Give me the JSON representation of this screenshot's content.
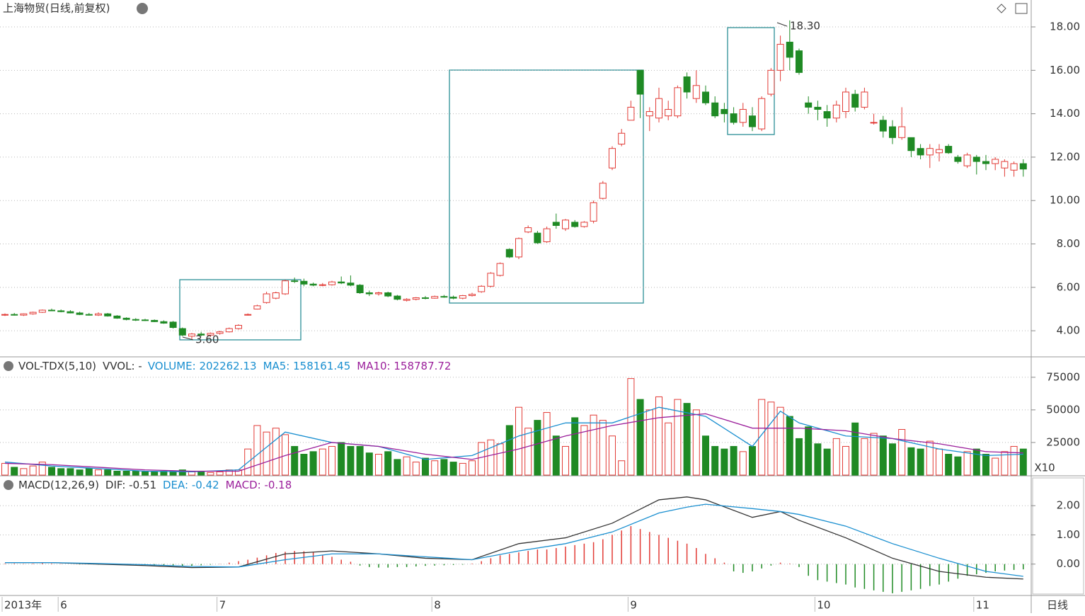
{
  "chart_data": {
    "type": "candlestick",
    "title": "上海物贸(日线,前复权)",
    "ylim": [
      2.83,
      19.24
    ],
    "yticks": [
      {
        "value": 4,
        "label": "4.00"
      },
      {
        "value": 6,
        "label": "6.00"
      },
      {
        "value": 8,
        "label": "8.00"
      },
      {
        "value": 10,
        "label": "10.00"
      },
      {
        "value": 12,
        "label": "12.00"
      },
      {
        "value": 14,
        "label": "14.00"
      },
      {
        "value": 16,
        "label": "16.00"
      },
      {
        "value": 18,
        "label": "18.00"
      }
    ],
    "xticks": [
      {
        "value": 0,
        "label": "2013年"
      },
      {
        "value": 6,
        "label": "6"
      },
      {
        "value": 23,
        "label": "7"
      },
      {
        "value": 46,
        "label": "8"
      },
      {
        "value": 67,
        "label": "9"
      },
      {
        "value": 87,
        "label": "10"
      },
      {
        "value": 104,
        "label": "11"
      }
    ],
    "period_label": "日线",
    "up_color": "#e23b36",
    "down_color": "#1f8a24",
    "annotations": [
      "18.30",
      "3.60"
    ],
    "candles": [
      [
        4.72,
        4.8,
        4.68,
        4.75
      ],
      [
        4.75,
        4.82,
        4.7,
        4.72
      ],
      [
        4.72,
        4.8,
        4.68,
        4.78
      ],
      [
        4.78,
        4.88,
        4.74,
        4.85
      ],
      [
        4.85,
        4.98,
        4.82,
        4.95
      ],
      [
        4.95,
        5.02,
        4.9,
        4.92
      ],
      [
        4.92,
        4.98,
        4.85,
        4.88
      ],
      [
        4.88,
        4.95,
        4.8,
        4.82
      ],
      [
        4.82,
        4.88,
        4.72,
        4.75
      ],
      [
        4.75,
        4.82,
        4.7,
        4.72
      ],
      [
        4.72,
        4.85,
        4.68,
        4.78
      ],
      [
        4.78,
        4.82,
        4.65,
        4.68
      ],
      [
        4.68,
        4.72,
        4.55,
        4.58
      ],
      [
        4.58,
        4.62,
        4.48,
        4.52
      ],
      [
        4.52,
        4.58,
        4.45,
        4.5
      ],
      [
        4.5,
        4.55,
        4.45,
        4.48
      ],
      [
        4.48,
        4.52,
        4.4,
        4.42
      ],
      [
        4.42,
        4.48,
        4.32,
        4.35
      ],
      [
        4.4,
        4.45,
        4.1,
        4.15
      ],
      [
        4.1,
        4.15,
        3.75,
        3.8
      ],
      [
        3.75,
        3.9,
        3.6,
        3.85
      ],
      [
        3.85,
        3.95,
        3.75,
        3.8
      ],
      [
        3.8,
        3.92,
        3.72,
        3.88
      ],
      [
        3.88,
        4.0,
        3.82,
        3.95
      ],
      [
        3.95,
        4.15,
        3.92,
        4.1
      ],
      [
        4.1,
        4.3,
        4.05,
        4.25
      ],
      [
        4.75,
        4.8,
        4.7,
        4.75
      ],
      [
        5.0,
        5.2,
        4.98,
        5.15
      ],
      [
        5.3,
        5.8,
        5.25,
        5.7
      ],
      [
        5.5,
        5.8,
        5.45,
        5.75
      ],
      [
        5.7,
        6.35,
        5.65,
        6.3
      ],
      [
        6.3,
        6.45,
        6.2,
        6.28
      ],
      [
        6.28,
        6.4,
        6.05,
        6.15
      ],
      [
        6.15,
        6.22,
        6.05,
        6.1
      ],
      [
        6.1,
        6.2,
        6.05,
        6.12
      ],
      [
        6.12,
        6.3,
        6.08,
        6.25
      ],
      [
        6.25,
        6.5,
        6.15,
        6.2
      ],
      [
        6.2,
        6.55,
        6.05,
        6.1
      ],
      [
        6.1,
        6.15,
        5.7,
        5.75
      ],
      [
        5.75,
        5.85,
        5.6,
        5.7
      ],
      [
        5.7,
        5.8,
        5.62,
        5.75
      ],
      [
        5.75,
        5.8,
        5.55,
        5.6
      ],
      [
        5.6,
        5.65,
        5.4,
        5.45
      ],
      [
        5.4,
        5.5,
        5.35,
        5.45
      ],
      [
        5.45,
        5.55,
        5.4,
        5.52
      ],
      [
        5.52,
        5.6,
        5.45,
        5.5
      ],
      [
        5.5,
        5.62,
        5.48,
        5.58
      ],
      [
        5.58,
        5.65,
        5.52,
        5.55
      ],
      [
        5.55,
        5.62,
        5.45,
        5.5
      ],
      [
        5.5,
        5.65,
        5.45,
        5.62
      ],
      [
        5.62,
        5.75,
        5.58,
        5.68
      ],
      [
        5.8,
        6.1,
        5.75,
        6.05
      ],
      [
        6.05,
        6.7,
        6.0,
        6.65
      ],
      [
        6.55,
        7.15,
        6.5,
        7.1
      ],
      [
        7.75,
        7.8,
        7.35,
        7.4
      ],
      [
        7.4,
        8.3,
        7.3,
        8.25
      ],
      [
        8.55,
        8.85,
        8.5,
        8.75
      ],
      [
        8.5,
        8.6,
        8.0,
        8.05
      ],
      [
        8.1,
        8.8,
        8.05,
        8.7
      ],
      [
        9.0,
        9.4,
        8.7,
        8.85
      ],
      [
        8.7,
        9.15,
        8.6,
        9.1
      ],
      [
        9.0,
        9.1,
        8.75,
        8.8
      ],
      [
        8.8,
        9.05,
        8.75,
        9.0
      ],
      [
        9.05,
        10.0,
        8.95,
        9.9
      ],
      [
        10.1,
        10.9,
        10.05,
        10.8
      ],
      [
        11.5,
        12.5,
        11.4,
        12.4
      ],
      [
        12.6,
        13.3,
        12.5,
        13.1
      ],
      [
        13.7,
        14.6,
        13.7,
        14.3
      ],
      [
        16.0,
        16.0,
        13.8,
        14.9
      ],
      [
        13.9,
        14.3,
        13.2,
        14.1
      ],
      [
        13.8,
        15.2,
        13.6,
        14.7
      ],
      [
        13.9,
        14.6,
        13.7,
        14.2
      ],
      [
        13.9,
        15.3,
        13.8,
        15.2
      ],
      [
        15.7,
        15.9,
        14.7,
        15.0
      ],
      [
        14.7,
        16.0,
        14.5,
        15.3
      ],
      [
        15.0,
        15.3,
        14.4,
        14.5
      ],
      [
        14.5,
        14.8,
        13.8,
        13.9
      ],
      [
        14.2,
        14.5,
        13.6,
        14.0
      ],
      [
        14.0,
        14.3,
        13.5,
        13.6
      ],
      [
        13.6,
        14.5,
        13.4,
        14.2
      ],
      [
        13.9,
        14.3,
        13.2,
        13.4
      ],
      [
        13.3,
        14.8,
        13.2,
        14.7
      ],
      [
        14.9,
        16.1,
        14.8,
        16.0
      ],
      [
        16.0,
        17.6,
        15.5,
        17.2
      ],
      [
        17.3,
        18.3,
        16.0,
        16.6
      ],
      [
        16.9,
        17.0,
        15.8,
        15.9
      ],
      [
        14.5,
        14.8,
        14.0,
        14.3
      ],
      [
        14.3,
        14.6,
        13.7,
        14.2
      ],
      [
        14.1,
        14.4,
        13.4,
        13.8
      ],
      [
        13.8,
        14.6,
        13.6,
        14.4
      ],
      [
        14.1,
        15.2,
        13.8,
        15.0
      ],
      [
        14.9,
        15.1,
        14.1,
        14.3
      ],
      [
        14.3,
        15.2,
        14.2,
        15.0
      ],
      [
        13.6,
        14.0,
        13.5,
        13.6
      ],
      [
        13.7,
        13.9,
        12.9,
        13.2
      ],
      [
        13.4,
        13.7,
        12.6,
        12.9
      ],
      [
        12.9,
        14.3,
        12.8,
        13.4
      ],
      [
        12.9,
        12.9,
        12.0,
        12.3
      ],
      [
        12.4,
        12.6,
        11.9,
        12.1
      ],
      [
        12.1,
        12.6,
        11.5,
        12.4
      ],
      [
        12.2,
        12.6,
        11.8,
        12.35
      ],
      [
        12.5,
        12.6,
        12.15,
        12.2
      ],
      [
        12.0,
        12.1,
        11.7,
        11.8
      ],
      [
        11.6,
        12.2,
        11.5,
        12.1
      ],
      [
        12.0,
        12.1,
        11.2,
        11.8
      ],
      [
        11.8,
        12.1,
        11.4,
        11.7
      ],
      [
        11.7,
        12.0,
        11.4,
        11.9
      ],
      [
        11.5,
        11.9,
        11.1,
        11.8
      ],
      [
        11.4,
        11.8,
        11.1,
        11.7
      ],
      [
        11.7,
        11.9,
        11.1,
        11.45
      ]
    ],
    "volume": {
      "indicator": "VOL-TDX(5,10)",
      "vvol": "VVOL: -",
      "readouts": [
        {
          "text": "VOLUME: 202262.13",
          "color": "#1a8fd0"
        },
        {
          "text": "MA5: 158161.45",
          "color": "#1a8fd0"
        },
        {
          "text": "MA10: 158787.72",
          "color": "#9b1f9b"
        }
      ],
      "unit_label": "X10",
      "ylim": [
        0,
        89000
      ],
      "yticks": [
        25000,
        50000,
        75000
      ],
      "values": [
        9000,
        6000,
        5000,
        7000,
        10000,
        6000,
        5000,
        5000,
        4000,
        5000,
        4000,
        4000,
        3000,
        3000,
        3000,
        2500,
        2500,
        3000,
        3000,
        4000,
        2500,
        2500,
        2000,
        2500,
        4000,
        4000,
        20000,
        38000,
        33000,
        36000,
        31000,
        22000,
        16000,
        18000,
        20000,
        22000,
        25000,
        22000,
        22000,
        17000,
        16000,
        18000,
        12000,
        14000,
        10000,
        13000,
        11000,
        12000,
        10000,
        9000,
        11000,
        25000,
        27000,
        24000,
        38000,
        52000,
        36000,
        42000,
        48000,
        30000,
        22000,
        44000,
        38000,
        46000,
        42000,
        30000,
        11000,
        74000,
        58000,
        50000,
        60000,
        40000,
        58000,
        55000,
        50000,
        30000,
        22000,
        20000,
        22000,
        18000,
        22000,
        58000,
        56000,
        52000,
        45000,
        28000,
        37000,
        24000,
        20000,
        28000,
        22000,
        40000,
        28000,
        32000,
        30000,
        24000,
        35000,
        21000,
        20000,
        26000,
        20000,
        16000,
        14000,
        18000,
        20000,
        16000,
        13000,
        18000,
        22000,
        20000
      ],
      "lines": [
        {
          "name": "MA5",
          "color": "#1a8fd0",
          "x": [
            0,
            5,
            10,
            15,
            20,
            25,
            30,
            35,
            40,
            45,
            50,
            55,
            60,
            65,
            70,
            75,
            80,
            83,
            85,
            90,
            95,
            100,
            105,
            109
          ],
          "values": [
            10000,
            7000,
            5000,
            3000,
            2500,
            4000,
            33000,
            25000,
            22000,
            12000,
            15000,
            30000,
            40000,
            40000,
            52000,
            45000,
            22000,
            49000,
            40000,
            30000,
            28000,
            20000,
            15000,
            16000
          ]
        },
        {
          "name": "MA10",
          "color": "#9b1f9b",
          "x": [
            0,
            5,
            10,
            15,
            20,
            25,
            30,
            35,
            40,
            45,
            50,
            55,
            60,
            65,
            70,
            75,
            80,
            83,
            85,
            90,
            95,
            100,
            105,
            109
          ],
          "values": [
            9000,
            8000,
            6000,
            4000,
            3000,
            3000,
            15000,
            25000,
            22000,
            16000,
            12000,
            20000,
            30000,
            38000,
            44000,
            47000,
            36000,
            36000,
            36000,
            34000,
            28000,
            24000,
            18000,
            17000
          ]
        }
      ]
    },
    "macd": {
      "indicator": "MACD(12,26,9)",
      "readouts": [
        {
          "text": "DIF: -0.51",
          "color": "#333333"
        },
        {
          "text": "DEA: -0.42",
          "color": "#1a8fd0"
        },
        {
          "text": "MACD: -0.18",
          "color": "#9b1f9b"
        }
      ],
      "ylim": [
        -1.05,
        2.95
      ],
      "yticks": [
        {
          "value": 0,
          "label": "0.00"
        },
        {
          "value": 1,
          "label": "1.00"
        },
        {
          "value": 2,
          "label": "2.00"
        }
      ],
      "values": [
        0.02,
        0.02,
        0.01,
        0.02,
        0.03,
        0.02,
        0.01,
        0,
        -0.01,
        -0.01,
        -0.02,
        -0.02,
        -0.03,
        -0.03,
        -0.04,
        -0.04,
        -0.05,
        -0.05,
        -0.06,
        -0.08,
        -0.06,
        -0.04,
        -0.02,
        0.01,
        0.05,
        0.1,
        0.15,
        0.22,
        0.3,
        0.38,
        0.42,
        0.45,
        0.44,
        0.4,
        0.32,
        0.25,
        0.15,
        0.08,
        -0.05,
        -0.1,
        -0.12,
        -0.12,
        -0.1,
        -0.1,
        -0.08,
        -0.06,
        -0.05,
        -0.04,
        -0.03,
        -0.02,
        0.02,
        0.1,
        0.2,
        0.3,
        0.35,
        0.4,
        0.45,
        0.5,
        0.5,
        0.55,
        0.6,
        0.65,
        0.7,
        0.75,
        0.85,
        1.0,
        1.15,
        1.3,
        1.2,
        1.1,
        1.0,
        0.9,
        0.8,
        0.7,
        0.55,
        0.35,
        0.2,
        0.05,
        -0.25,
        -0.3,
        -0.25,
        -0.15,
        -0.05,
        0.05,
        0.02,
        -0.1,
        -0.4,
        -0.55,
        -0.6,
        -0.65,
        -0.7,
        -0.8,
        -0.85,
        -0.9,
        -0.95,
        -1.0,
        -0.95,
        -0.9,
        -0.85,
        -0.75,
        -0.7,
        -0.6,
        -0.5,
        -0.4,
        -0.35,
        -0.3,
        -0.25,
        -0.22,
        -0.2,
        -0.18
      ],
      "lines": [
        {
          "name": "DIF",
          "color": "#333333",
          "x": [
            0,
            5,
            10,
            15,
            20,
            25,
            30,
            35,
            40,
            45,
            50,
            55,
            60,
            65,
            70,
            73,
            75,
            80,
            83,
            85,
            90,
            95,
            100,
            105,
            109
          ],
          "values": [
            0.05,
            0.05,
            0,
            -0.05,
            -0.12,
            -0.1,
            0.35,
            0.45,
            0.35,
            0.2,
            0.15,
            0.7,
            0.9,
            1.4,
            2.2,
            2.3,
            2.2,
            1.6,
            1.8,
            1.5,
            0.9,
            0.2,
            -0.25,
            -0.45,
            -0.51
          ]
        },
        {
          "name": "DEA",
          "color": "#1a8fd0",
          "x": [
            0,
            5,
            10,
            15,
            20,
            25,
            30,
            35,
            40,
            45,
            50,
            55,
            60,
            65,
            70,
            73,
            75,
            80,
            83,
            85,
            90,
            95,
            100,
            105,
            109
          ],
          "values": [
            0.05,
            0.05,
            0.02,
            -0.02,
            -0.08,
            -0.1,
            0.15,
            0.35,
            0.35,
            0.25,
            0.15,
            0.45,
            0.7,
            1.1,
            1.75,
            1.95,
            2.05,
            1.9,
            1.8,
            1.7,
            1.3,
            0.7,
            0.2,
            -0.25,
            -0.42
          ]
        }
      ]
    }
  }
}
